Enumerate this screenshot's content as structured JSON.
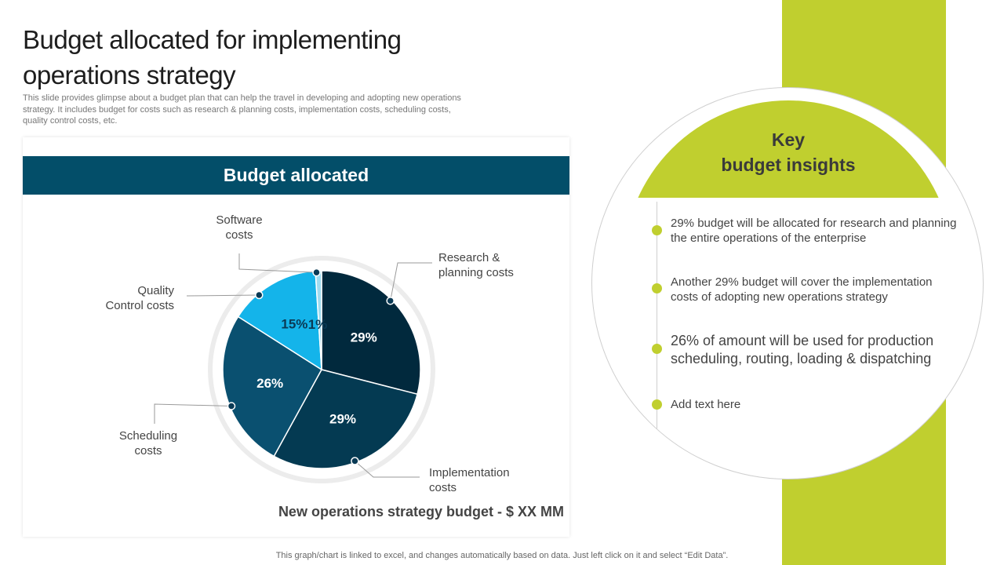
{
  "title": "Budget allocated for implementing operations strategy",
  "subtitle": "This slide provides glimpse about a budget plan that can help the travel in developing and adopting new operations strategy. It includes budget for costs such as research & planning costs, implementation costs, scheduling costs, quality control costs, etc.",
  "card": {
    "header": "Budget allocated",
    "budget_note": "New operations strategy budget - $ XX MM"
  },
  "chart_data": {
    "type": "pie",
    "title": "Budget allocated",
    "slices": [
      {
        "label": "Research & planning costs",
        "label_lines": [
          "Research &",
          "planning costs"
        ],
        "value": 29,
        "display": "29%",
        "color": "#01293d"
      },
      {
        "label": "Implementation costs",
        "label_lines": [
          "Implementation",
          "costs"
        ],
        "value": 29,
        "display": "29%",
        "color": "#043a52"
      },
      {
        "label": "Scheduling costs",
        "label_lines": [
          "Scheduling",
          "costs"
        ],
        "value": 26,
        "display": "26%",
        "color": "#0a5070"
      },
      {
        "label": "Quality Control costs",
        "label_lines": [
          "Quality",
          "Control costs"
        ],
        "value": 15,
        "display": "15%",
        "color": "#14b4ea"
      },
      {
        "label": "Software costs",
        "label_lines": [
          "Software",
          "costs"
        ],
        "value": 1,
        "display": "1%",
        "color": "#9fdcf0"
      }
    ]
  },
  "insights": {
    "title_line1": "Key",
    "title_line2": "budget insights",
    "items": [
      "29% budget will be allocated for research and planning the entire operations of the enterprise",
      "Another 29% budget will cover the implementation costs of adopting new operations strategy",
      "26% of amount will be used for production scheduling, routing, loading & dispatching",
      "Add text here"
    ]
  },
  "footer": "This graph/chart is linked to excel,  and changes automatically based on data. Just left click on it and select “Edit Data”.",
  "colors": {
    "accent_green": "#c0cf2f",
    "header_blue": "#034e69"
  }
}
